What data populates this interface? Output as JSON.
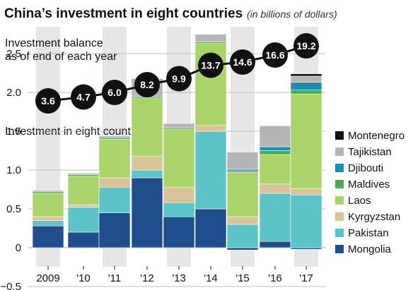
{
  "header": {
    "title": "China’s investment in eight countries",
    "subtitle": "(in billions of dollars)"
  },
  "balance": {
    "label_line1": "Investment balance",
    "label_line2": "as of end of each year"
  },
  "bars_label": "Investment in eight countries",
  "chart_data": [
    {
      "type": "line",
      "title": "Investment balance as of end of each year",
      "categories": [
        "2009",
        "'10",
        "'11",
        "'12",
        "'13",
        "'14",
        "'15",
        "'16",
        "'17"
      ],
      "values": [
        3.6,
        4.7,
        6.0,
        8.2,
        9.9,
        13.7,
        14.6,
        16.6,
        19.2
      ],
      "value_labels": [
        "3.6",
        "4.7",
        "6.0",
        "8.2",
        "9.9",
        "13.7",
        "14.6",
        "16.6",
        "19.2"
      ]
    },
    {
      "type": "bar",
      "stacked": true,
      "title": "Investment in eight countries",
      "categories": [
        "2009",
        "'10",
        "'11",
        "'12",
        "'13",
        "'14",
        "'15",
        "'16",
        "'17"
      ],
      "ylim": [
        -0.5,
        2.8
      ],
      "yticks": [
        "−0.5",
        "0",
        "0.5",
        "1.0",
        "1.5",
        "2.0",
        "2.5"
      ],
      "ytick_values": [
        -0.5,
        0,
        0.5,
        1.0,
        1.5,
        2.0,
        2.5
      ],
      "grid": "horizontal",
      "legend_position": "right",
      "series": [
        {
          "name": "Mongolia",
          "color": "#1f4e8c",
          "values": [
            0.28,
            0.2,
            0.45,
            0.9,
            0.4,
            0.5,
            -0.03,
            0.08,
            -0.02
          ]
        },
        {
          "name": "Pakistan",
          "color": "#5cc3c8",
          "values": [
            0.07,
            0.32,
            0.33,
            0.1,
            0.18,
            1.0,
            0.3,
            0.62,
            0.68
          ]
        },
        {
          "name": "Kyrgyzstan",
          "color": "#d9c49a",
          "values": [
            0.05,
            0.03,
            0.12,
            0.18,
            0.2,
            0.08,
            0.1,
            0.12,
            0.08
          ]
        },
        {
          "name": "Laos",
          "color": "#a8d46a",
          "values": [
            0.3,
            0.37,
            0.5,
            0.75,
            0.75,
            1.05,
            0.57,
            0.38,
            1.22
          ]
        },
        {
          "name": "Maldives",
          "color": "#4fa84f",
          "values": [
            0.02,
            0.02,
            0.02,
            0.02,
            0.02,
            0.02,
            0.02,
            0.05,
            0.05
          ]
        },
        {
          "name": "Djibouti",
          "color": "#1a8fb3",
          "values": [
            0.0,
            0.0,
            0.0,
            0.0,
            0.0,
            0.0,
            0.02,
            0.05,
            0.1
          ]
        },
        {
          "name": "Tajikistan",
          "color": "#b5b5b5",
          "values": [
            0.02,
            0.02,
            0.02,
            0.23,
            0.05,
            0.1,
            0.22,
            0.27,
            0.08
          ]
        },
        {
          "name": "Montenegro",
          "color": "#111111",
          "values": [
            0.0,
            0.0,
            0.0,
            0.0,
            0.0,
            0.0,
            0.0,
            0.0,
            0.03
          ]
        }
      ],
      "legend_order": [
        "Montenegro",
        "Tajikistan",
        "Djibouti",
        "Maldives",
        "Laos",
        "Kyrgyzstan",
        "Pakistan",
        "Mongolia"
      ]
    }
  ],
  "colors": {
    "band": "#e6e6e6",
    "bubble": "#111111",
    "line": "#111111",
    "grid": "#bdbdbd"
  }
}
